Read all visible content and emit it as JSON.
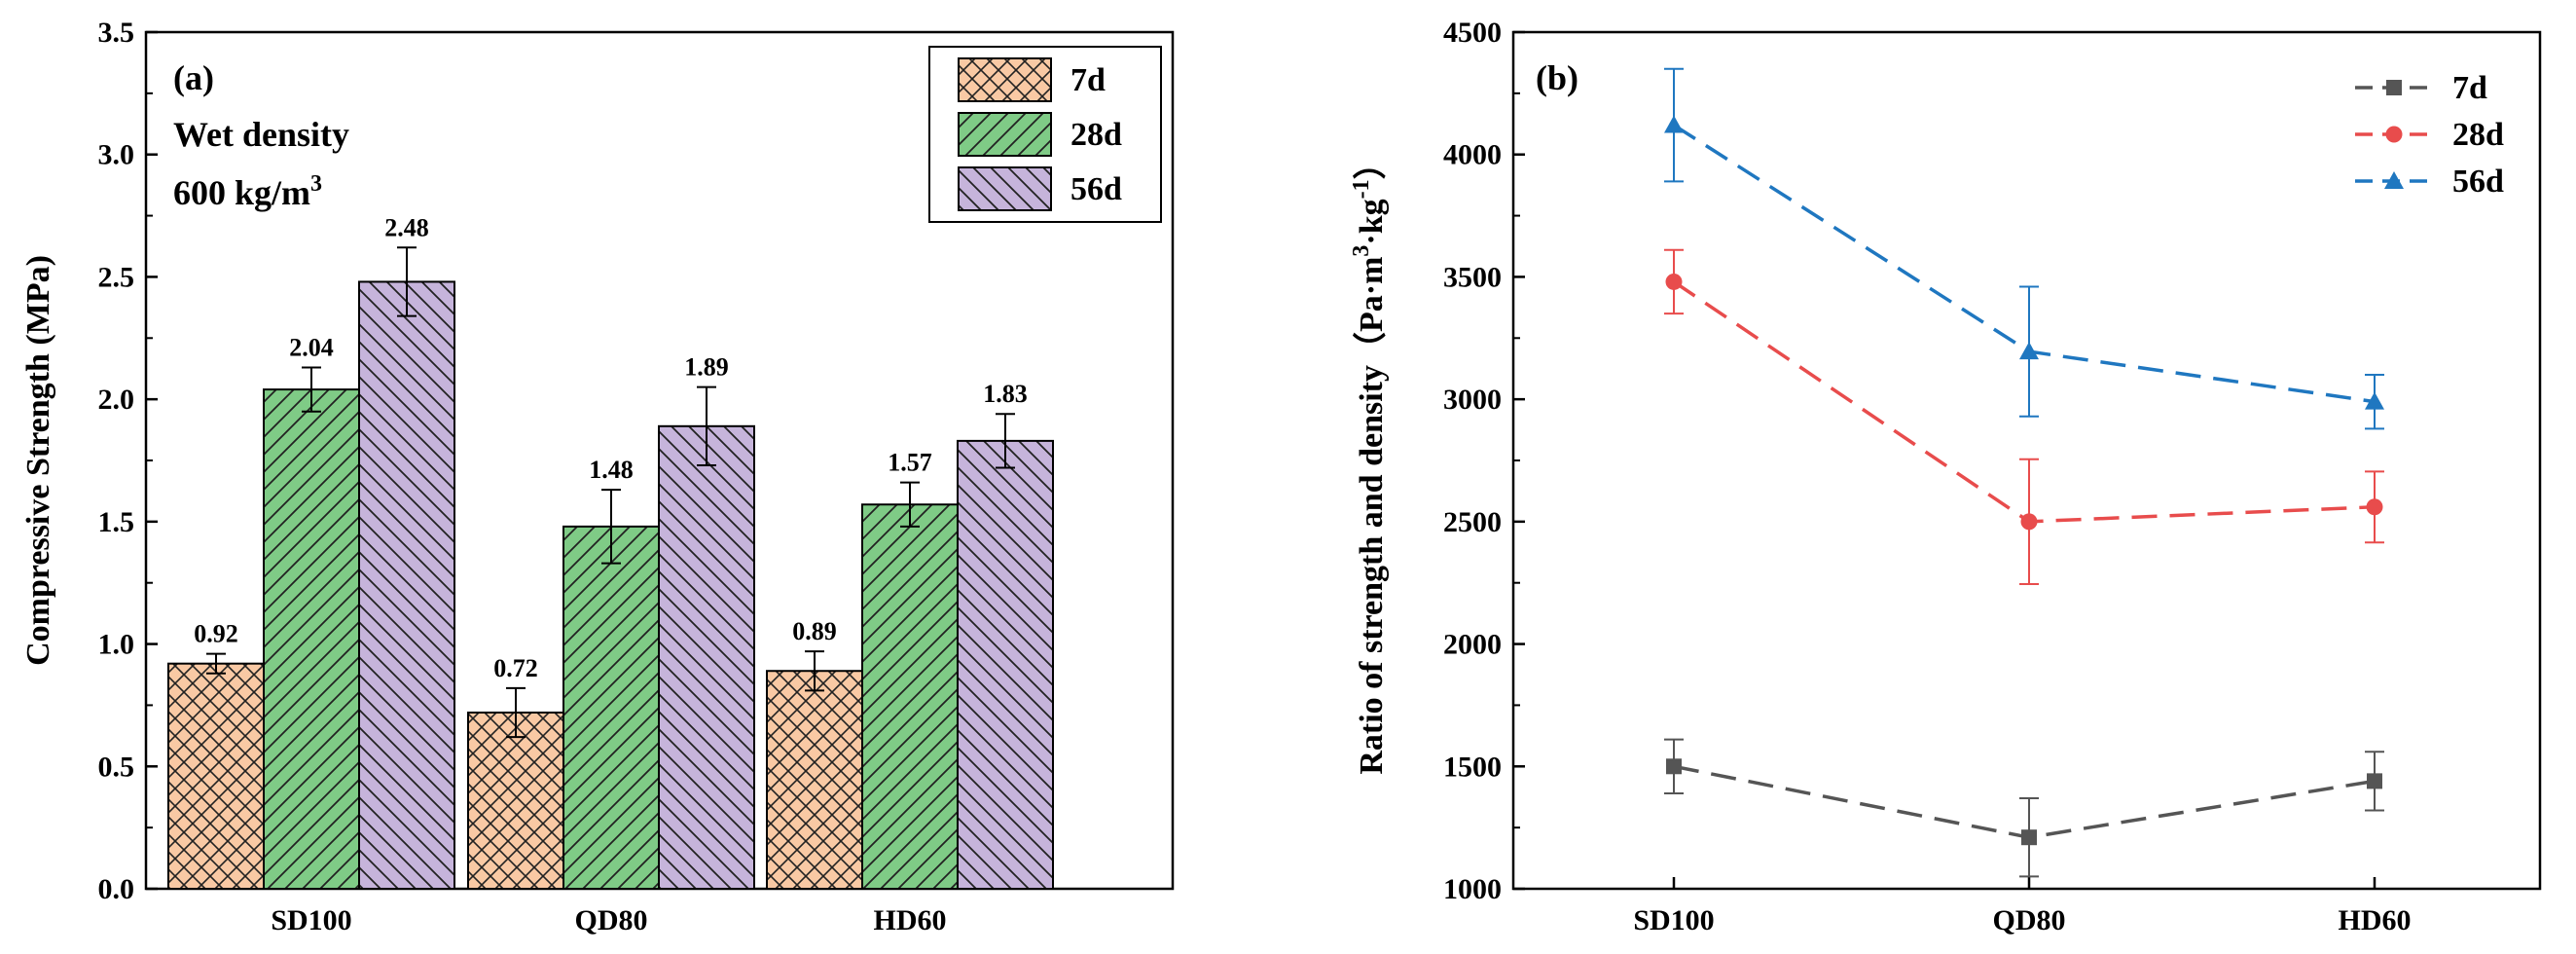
{
  "chart_data": [
    {
      "type": "bar",
      "panel_label": "(a)",
      "annotation": {
        "line1": "Wet density",
        "line2_value": "600 kg/m",
        "line2_sup": "3"
      },
      "categories": [
        "SD100",
        "QD80",
        "HD60"
      ],
      "ylabel": "Compressive Strength (MPa)",
      "xlabel": "",
      "ylim": [
        0,
        3.5
      ],
      "yticks": [
        0.0,
        0.5,
        1.0,
        1.5,
        2.0,
        2.5,
        3.0,
        3.5
      ],
      "ytick_labels": [
        "0.0",
        "0.5",
        "1.0",
        "1.5",
        "2.0",
        "2.5",
        "3.0",
        "3.5"
      ],
      "legend_position": "top-right",
      "series": [
        {
          "name": "7d",
          "values": [
            0.92,
            0.72,
            0.89
          ],
          "errors": [
            0.04,
            0.1,
            0.08
          ],
          "labels": [
            "0.92",
            "0.72",
            "0.89"
          ],
          "color": "#f9c9a4",
          "pattern": "crosshatch"
        },
        {
          "name": "28d",
          "values": [
            2.04,
            1.48,
            1.57
          ],
          "errors": [
            0.09,
            0.15,
            0.09
          ],
          "labels": [
            "2.04",
            "1.48",
            "1.57"
          ],
          "color": "#7fcb86",
          "pattern": "diagonal"
        },
        {
          "name": "56d",
          "values": [
            2.48,
            1.89,
            1.83
          ],
          "errors": [
            0.14,
            0.16,
            0.11
          ],
          "labels": [
            "2.48",
            "1.89",
            "1.83"
          ],
          "color": "#c6b4db",
          "pattern": "diagonal-reverse"
        }
      ]
    },
    {
      "type": "line",
      "panel_label": "(b)",
      "categories": [
        "SD100",
        "QD80",
        "HD60"
      ],
      "ylabel_main": "Ratio of strength and density（Pa·m",
      "ylabel_sup1": "3",
      "ylabel_mid": "·kg",
      "ylabel_sup2": "-1",
      "ylabel_end": "）",
      "xlabel": "",
      "ylim": [
        1000,
        4500
      ],
      "yticks": [
        1000,
        1500,
        2000,
        2500,
        3000,
        3500,
        4000,
        4500
      ],
      "ytick_labels": [
        "1000",
        "1500",
        "2000",
        "2500",
        "3000",
        "3500",
        "4000",
        "4500"
      ],
      "legend_position": "top-right",
      "series": [
        {
          "name": "7d",
          "values": [
            1500,
            1210,
            1440
          ],
          "errors": [
            110,
            160,
            120
          ],
          "color": "#555555",
          "marker": "square"
        },
        {
          "name": "28d",
          "values": [
            3480,
            2500,
            2560
          ],
          "errors": [
            130,
            255,
            145
          ],
          "color": "#e84c4c",
          "marker": "circle"
        },
        {
          "name": "56d",
          "values": [
            4120,
            3195,
            2990
          ],
          "errors": [
            230,
            265,
            110
          ],
          "color": "#1f77c0",
          "marker": "triangle"
        }
      ]
    }
  ]
}
